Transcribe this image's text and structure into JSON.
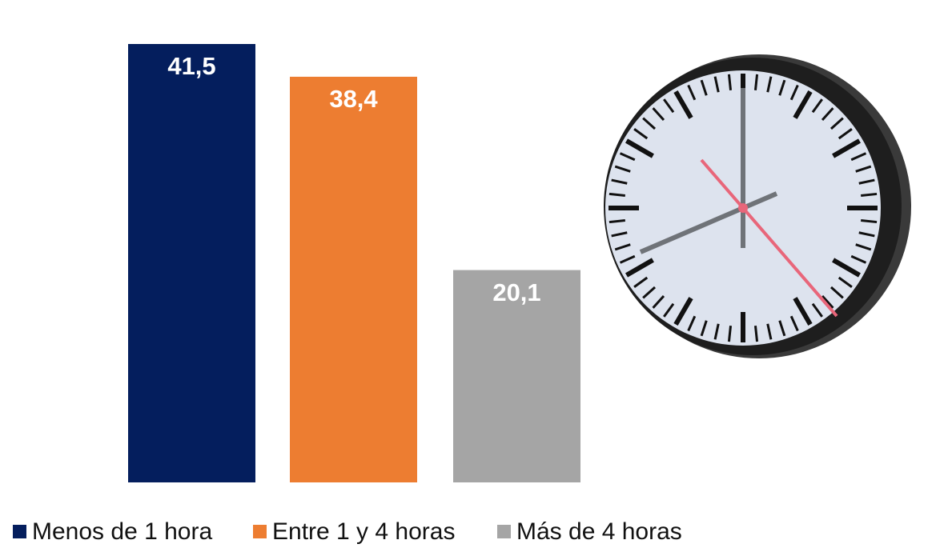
{
  "chart_data": {
    "type": "bar",
    "series": [
      {
        "name": "Menos de 1 hora",
        "color": "#041e5d",
        "values": [
          41.5
        ],
        "value_labels": [
          "41,5"
        ]
      },
      {
        "name": "Entre 1 y 4 horas",
        "color": "#ed7d31",
        "values": [
          38.4
        ],
        "value_labels": [
          "38,4"
        ]
      },
      {
        "name": "Más de 4 horas",
        "color": "#a5a5a5",
        "values": [
          20.1
        ],
        "value_labels": [
          "20,1"
        ]
      }
    ],
    "legend": "bottom"
  }
}
